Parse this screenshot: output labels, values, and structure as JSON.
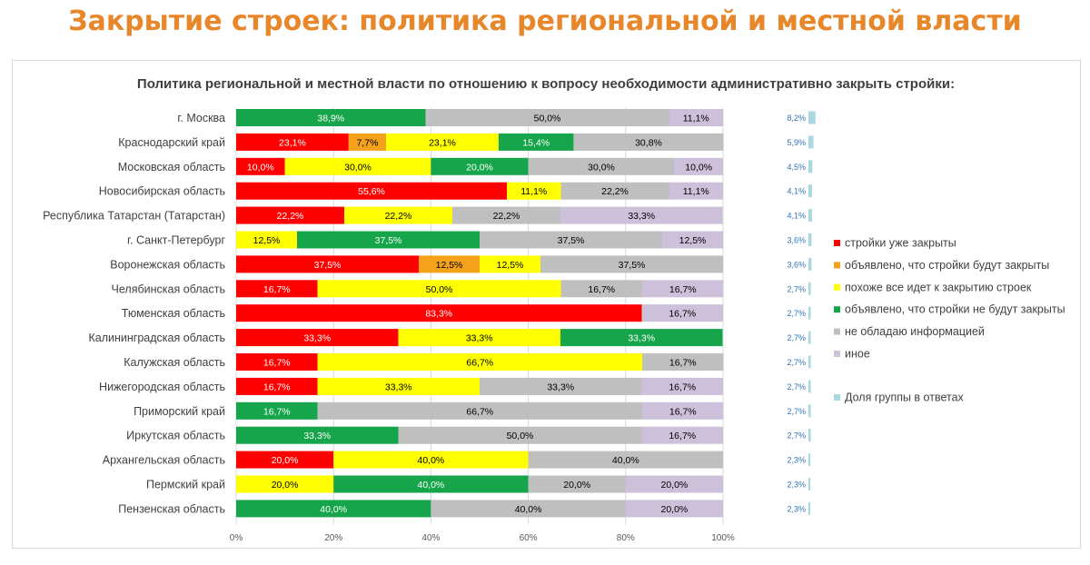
{
  "page": {
    "title": "Закрытие строек: политика региональной и местной власти"
  },
  "chart_data": {
    "type": "bar",
    "orientation": "horizontal",
    "stacked": "100%",
    "title": "Политика региональной и местной власти по отношению к вопросу необходимости административно закрыть стройки:",
    "xlabel": "",
    "ylabel": "",
    "xlim": [
      0,
      100
    ],
    "x_ticks": [
      "0%",
      "20%",
      "40%",
      "60%",
      "80%",
      "100%"
    ],
    "grid": "vertical",
    "legend_position": "right",
    "categories": [
      "г. Москва",
      "Краснодарский край",
      "Московская область",
      "Новосибирская область",
      "Республика Татарстан (Татарстан)",
      "г. Санкт-Петербург",
      "Воронежская область",
      "Челябинская область",
      "Тюменская область",
      "Калининградская область",
      "Калужская область",
      "Нижегородская область",
      "Приморский край",
      "Иркутская область",
      "Архангельская область",
      "Пермский край",
      "Пензенская область"
    ],
    "series": [
      {
        "name": "стройки уже закрыты",
        "color": "#ff0000",
        "label_color": "#ffffff",
        "values": [
          0,
          23.1,
          10.0,
          55.6,
          22.2,
          0,
          37.5,
          16.7,
          83.3,
          33.3,
          16.7,
          16.7,
          0,
          0,
          20.0,
          0,
          0
        ]
      },
      {
        "name": "объявлено, что стройки будут закрыты",
        "color": "#f4a11b",
        "label_color": "#000000",
        "values": [
          0,
          7.7,
          0,
          0,
          0,
          0,
          12.5,
          0,
          0,
          0,
          0,
          0,
          0,
          0,
          0,
          0,
          0
        ]
      },
      {
        "name": "похоже все идет к закрытию строек",
        "color": "#ffff00",
        "label_color": "#000000",
        "values": [
          0,
          23.1,
          30.0,
          11.1,
          22.2,
          12.5,
          12.5,
          50.0,
          0,
          33.3,
          66.7,
          33.3,
          0,
          0,
          40.0,
          20.0,
          0
        ]
      },
      {
        "name": "объявлено, что стройки не будут закрыты",
        "color": "#16a54a",
        "label_color": "#ffffff",
        "values": [
          38.9,
          15.4,
          20.0,
          0,
          0,
          37.5,
          0,
          0,
          0,
          33.3,
          0,
          0,
          16.7,
          33.3,
          0,
          40.0,
          40.0
        ]
      },
      {
        "name": "не обладаю информацией",
        "color": "#bfbfbf",
        "label_color": "#000000",
        "values": [
          50.0,
          30.8,
          30.0,
          22.2,
          22.2,
          37.5,
          37.5,
          16.7,
          0,
          0,
          16.7,
          33.3,
          66.7,
          50.0,
          40.0,
          20.0,
          40.0
        ]
      },
      {
        "name": "иное",
        "color": "#ccc0da",
        "label_color": "#000000",
        "values": [
          11.1,
          0,
          10.0,
          11.1,
          33.3,
          12.5,
          0,
          16.7,
          16.7,
          0,
          0,
          16.7,
          16.7,
          16.7,
          0,
          20.0,
          20.0
        ]
      }
    ],
    "group_share": {
      "name": "Доля группы в ответах",
      "color": "#a9d8e2",
      "values": [
        8.2,
        5.9,
        4.5,
        4.1,
        4.1,
        3.6,
        3.6,
        2.7,
        2.7,
        2.7,
        2.7,
        2.7,
        2.7,
        2.7,
        2.3,
        2.3,
        2.3
      ],
      "labels": [
        "8,2%",
        "5,9%",
        "4,5%",
        "4,1%",
        "4,1%",
        "3,6%",
        "3,6%",
        "2,7%",
        "2,7%",
        "2,7%",
        "2,7%",
        "2,7%",
        "2,7%",
        "2,7%",
        "2,3%",
        "2,3%",
        "2,3%"
      ]
    },
    "value_labels": [
      [
        "",
        "",
        "",
        "38,9%",
        "50,0%",
        "11,1%"
      ],
      [
        "23,1%",
        "7,7%",
        "23,1%",
        "15,4%",
        "30,8%",
        ""
      ],
      [
        "10,0%",
        "",
        "30,0%",
        "20,0%",
        "30,0%",
        "10,0%"
      ],
      [
        "55,6%",
        "",
        "11,1%",
        "",
        "22,2%",
        "11,1%"
      ],
      [
        "22,2%",
        "",
        "22,2%",
        "",
        "22,2%",
        "33,3%"
      ],
      [
        "",
        "",
        "12,5%",
        "37,5%",
        "37,5%",
        "12,5%"
      ],
      [
        "37,5%",
        "12,5%",
        "12,5%",
        "",
        "37,5%",
        ""
      ],
      [
        "16,7%",
        "",
        "50,0%",
        "",
        "16,7%",
        "16,7%"
      ],
      [
        "83,3%",
        "",
        "",
        "",
        "",
        "16,7%"
      ],
      [
        "33,3%",
        "",
        "33,3%",
        "33,3%",
        "",
        ""
      ],
      [
        "16,7%",
        "",
        "66,7%",
        "",
        "16,7%",
        ""
      ],
      [
        "16,7%",
        "",
        "33,3%",
        "",
        "33,3%",
        "16,7%"
      ],
      [
        "",
        "",
        "",
        "16,7%",
        "66,7%",
        "16,7%"
      ],
      [
        "",
        "",
        "",
        "33,3%",
        "50,0%",
        "16,7%"
      ],
      [
        "20,0%",
        "",
        "40,0%",
        "",
        "40,0%",
        ""
      ],
      [
        "",
        "",
        "20,0%",
        "40,0%",
        "20,0%",
        "20,0%"
      ],
      [
        "",
        "",
        "",
        "40,0%",
        "40,0%",
        "20,0%"
      ]
    ]
  }
}
